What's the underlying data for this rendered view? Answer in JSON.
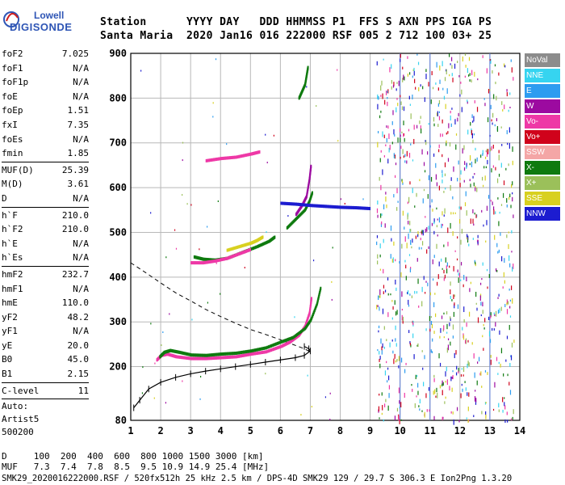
{
  "logo": {
    "line1": "Lowell",
    "line2": "DIGISONDE"
  },
  "header": {
    "line1": "Station      YYYY DAY   DDD HHMMSS P1  FFS S AXN PPS IGA PS",
    "line2": "Santa Maria  2020 Jan16 016 222000 RSF 005 2 712 100 03+ 25"
  },
  "params": [
    {
      "name": "foF2",
      "value": "7.025"
    },
    {
      "name": "foF1",
      "value": "N/A"
    },
    {
      "name": "foF1p",
      "value": "N/A"
    },
    {
      "name": "foE",
      "value": "N/A"
    },
    {
      "name": "foEp",
      "value": "1.51"
    },
    {
      "name": "fxI",
      "value": "7.35"
    },
    {
      "name": "foEs",
      "value": "N/A"
    },
    {
      "name": "fmin",
      "value": "1.85"
    },
    {
      "name": "MUF(D)",
      "value": "25.39"
    },
    {
      "name": "M(D)",
      "value": "3.61"
    },
    {
      "name": "D",
      "value": "N/A"
    },
    {
      "name": "h`F",
      "value": "210.0"
    },
    {
      "name": "h`F2",
      "value": "210.0"
    },
    {
      "name": "h`E",
      "value": "N/A"
    },
    {
      "name": "h`Es",
      "value": "N/A"
    },
    {
      "name": "hmF2",
      "value": "232.7"
    },
    {
      "name": "hmF1",
      "value": "N/A"
    },
    {
      "name": "hmE",
      "value": "110.0"
    },
    {
      "name": "yF2",
      "value": "48.2"
    },
    {
      "name": "yF1",
      "value": "N/A"
    },
    {
      "name": "yE",
      "value": "20.0"
    },
    {
      "name": "B0",
      "value": "45.0"
    },
    {
      "name": "B1",
      "value": "2.15"
    },
    {
      "name": "C-level",
      "value": "11"
    }
  ],
  "autoscaling": {
    "line1": "Auto:",
    "line2": "Artist5",
    "line3": "500200"
  },
  "legend": [
    {
      "label": "NoVal",
      "color": "#8c8c8c"
    },
    {
      "label": "NNE",
      "color": "#36d4f0"
    },
    {
      "label": "E",
      "color": "#2d9cf0"
    },
    {
      "label": "W",
      "color": "#9c0aa0"
    },
    {
      "label": "Vo-",
      "color": "#ee38a6"
    },
    {
      "label": "Vo+",
      "color": "#d0021b"
    },
    {
      "label": "SSW",
      "color": "#f4a6a6"
    },
    {
      "label": "X-",
      "color": "#0f7a0f"
    },
    {
      "label": "X+",
      "color": "#9bc05a"
    },
    {
      "label": "SSE",
      "color": "#d8d020"
    },
    {
      "label": "NNW",
      "color": "#1c1cd0"
    }
  ],
  "footer": {
    "line1": "D     100  200  400  600  800 1000 1500 3000 [km]",
    "line2": "MUF   7.3  7.4  7.8  8.5  9.5 10.9 14.9 25.4 [MHz]",
    "line3": "SMK29_2020016222000.RSF / 520fx512h 25 kHz 2.5 km / DPS-4D SMK29 129 / 29.7 S 306.3 E Ion2Png 1.3.20"
  },
  "chart_data": {
    "type": "scatter",
    "title": "",
    "xlabel": "",
    "ylabel": "",
    "xlim": [
      1,
      14
    ],
    "ylim": [
      80,
      900
    ],
    "x_ticks": [
      1,
      2,
      3,
      4,
      5,
      6,
      7,
      8,
      9,
      10,
      11,
      12,
      13,
      14
    ],
    "y_ticks": [
      80,
      200,
      300,
      400,
      500,
      600,
      700,
      800,
      900
    ],
    "grid": true,
    "vertical_marker_lines": [
      10.0,
      11.0,
      13.0
    ],
    "series": [
      {
        "name": "Vo-",
        "color": "#ee38a6",
        "x": [
          1.85,
          2.0,
          2.2,
          2.5,
          3.0,
          3.5,
          4.0,
          4.5,
          5.0,
          5.5,
          6.0,
          6.3,
          6.6,
          6.8,
          6.95,
          7.02
        ],
        "y": [
          215,
          225,
          228,
          222,
          218,
          218,
          220,
          222,
          228,
          233,
          245,
          255,
          270,
          290,
          320,
          355
        ]
      },
      {
        "name": "X-",
        "color": "#0f7a0f",
        "x": [
          1.95,
          2.1,
          2.3,
          2.6,
          3.0,
          3.5,
          4.0,
          4.5,
          5.0,
          5.5,
          6.0,
          6.4,
          6.8,
          7.0,
          7.2,
          7.33
        ],
        "y": [
          222,
          232,
          236,
          232,
          226,
          225,
          228,
          230,
          235,
          242,
          255,
          265,
          285,
          305,
          340,
          378
        ]
      },
      {
        "name": "X- (2F)",
        "color": "#0f7a0f",
        "x": [
          3.1,
          3.4,
          3.8,
          4.2,
          4.7,
          5.2,
          5.6,
          5.8
        ],
        "y": [
          445,
          440,
          438,
          442,
          455,
          468,
          480,
          490
        ]
      },
      {
        "name": "Vo- (2F)",
        "color": "#ee38a6",
        "x": [
          3.0,
          3.4,
          3.8,
          4.2,
          4.6,
          5.0
        ],
        "y": [
          432,
          432,
          436,
          442,
          452,
          462
        ]
      },
      {
        "name": "SSE (2F)",
        "color": "#d8d020",
        "x": [
          4.2,
          4.6,
          5.0,
          5.2,
          5.4
        ],
        "y": [
          460,
          468,
          476,
          482,
          490
        ]
      },
      {
        "name": "Vo- (3F)",
        "color": "#ee38a6",
        "x": [
          3.5,
          4.0,
          4.5,
          5.0,
          5.3
        ],
        "y": [
          660,
          665,
          668,
          675,
          680
        ]
      },
      {
        "name": "X- upper",
        "color": "#0f7a0f",
        "x": [
          6.2,
          6.5,
          6.8,
          6.95,
          7.05
        ],
        "y": [
          510,
          530,
          550,
          570,
          590
        ]
      },
      {
        "name": "W upper",
        "color": "#9c0aa0",
        "x": [
          6.5,
          6.7,
          6.85,
          6.95,
          7.0
        ],
        "y": [
          540,
          560,
          580,
          620,
          650
        ]
      },
      {
        "name": "X- top",
        "color": "#0f7a0f",
        "x": [
          6.6,
          6.7,
          6.8,
          6.85,
          6.9
        ],
        "y": [
          800,
          815,
          830,
          850,
          870
        ]
      },
      {
        "name": "NNW",
        "color": "#1c1cd0",
        "x": [
          6.0,
          6.5,
          7.0,
          7.5,
          8.0,
          8.5,
          9.0
        ],
        "y": [
          565,
          563,
          560,
          558,
          556,
          555,
          553
        ]
      }
    ],
    "profile_line": {
      "x": [
        1.1,
        1.3,
        1.6,
        2.0,
        2.5,
        3.0,
        3.5,
        4.0,
        4.5,
        5.0,
        5.5,
        6.0,
        6.5,
        6.8,
        7.0,
        6.95,
        6.8
      ],
      "y": [
        108,
        125,
        150,
        165,
        176,
        184,
        190,
        195,
        200,
        205,
        210,
        215,
        220,
        225,
        235,
        240,
        245
      ]
    },
    "dashed_profile": {
      "x": [
        1.0,
        1.5,
        2.0,
        2.5,
        3.0,
        3.5,
        4.0,
        4.5,
        5.0,
        5.5,
        6.0,
        6.4,
        6.8,
        7.0
      ],
      "y": [
        432,
        410,
        387,
        365,
        347,
        328,
        312,
        297,
        283,
        272,
        260,
        250,
        240,
        233
      ]
    }
  }
}
